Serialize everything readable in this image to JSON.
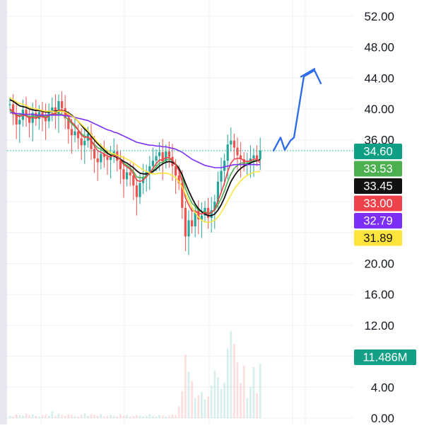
{
  "chart_data": {
    "type": "candlestick",
    "price_axis": {
      "ticks": [
        "52.00",
        "48.00",
        "44.00",
        "40.00",
        "36.00",
        "20.00",
        "16.00",
        "12.00",
        "4.00",
        "0.00"
      ],
      "range": [
        0,
        54
      ],
      "gridlines": true,
      "position": "right"
    },
    "last_price": {
      "value": 34.6,
      "label": "34.60",
      "style": "dotted"
    },
    "badges": [
      {
        "label": "34.60",
        "color": "#0e9f84",
        "text_color": "#ffffff"
      },
      {
        "label": "33.53",
        "color": "#4caf50",
        "text_color": "#ffffff"
      },
      {
        "label": "33.45",
        "color": "#111111",
        "text_color": "#ffffff"
      },
      {
        "label": "33.00",
        "color": "#f0424a",
        "text_color": "#ffffff"
      },
      {
        "label": "32.79",
        "color": "#7b2ff7",
        "text_color": "#ffffff"
      },
      {
        "label": "31.89",
        "color": "#ffe53b",
        "text_color": "#111111"
      }
    ],
    "volume_badge": {
      "label": "11.486M",
      "color": "#14a087"
    },
    "colors": {
      "up": "#26a69a",
      "down": "#ef5350",
      "grid": "#eef0f3",
      "axis_text": "#131722"
    },
    "close_prices": [
      40.6,
      39.3,
      38.0,
      38.6,
      39.9,
      39.1,
      38.2,
      39.5,
      38.7,
      39.6,
      39.0,
      38.4,
      39.8,
      40.2,
      39.3,
      41.0,
      40.1,
      38.8,
      37.4,
      36.6,
      37.1,
      36.2,
      35.3,
      35.9,
      36.8,
      34.8,
      33.6,
      33.1,
      34.2,
      33.8,
      33.4,
      33.9,
      34.5,
      33.3,
      32.2,
      30.9,
      31.8,
      31.4,
      30.1,
      28.6,
      30.4,
      31.2,
      31.9,
      32.6,
      33.3,
      33.9,
      34.4,
      33.2,
      34.5,
      33.8,
      32.6,
      31.4,
      30.4,
      27.2,
      23.5,
      25.6,
      24.8,
      26.9,
      25.7,
      26.2,
      27.2,
      25.9,
      26.9,
      28.0,
      30.6,
      32.0,
      33.3,
      35.4,
      35.9,
      35.0,
      34.0,
      33.5,
      32.8,
      33.0,
      33.6,
      34.0,
      33.5,
      34.6
    ],
    "moving_averages": [
      {
        "label": "33.53",
        "color": "#4caf50",
        "values": [
          39.8,
          39.5,
          39.2,
          39.2,
          39.3,
          39.2,
          39.0,
          39.1,
          39.0,
          39.1,
          39.1,
          39.0,
          39.2,
          39.3,
          39.2,
          39.4,
          39.3,
          39.0,
          38.6,
          38.1,
          37.7,
          37.3,
          36.8,
          36.5,
          36.3,
          35.9,
          35.4,
          35.0,
          34.8,
          34.5,
          34.2,
          34.1,
          34.1,
          33.9,
          33.5,
          33.0,
          32.7,
          32.4,
          31.9,
          31.2,
          31.1,
          31.1,
          31.3,
          31.6,
          32.0,
          32.5,
          33.0,
          33.1,
          33.4,
          33.5,
          33.3,
          32.9,
          32.4,
          31.3,
          29.7,
          28.7,
          27.8,
          27.4,
          26.9,
          26.7,
          26.7,
          26.5,
          26.6,
          26.9,
          27.6,
          28.4,
          29.4,
          30.6,
          31.6,
          32.3,
          32.7,
          33.0,
          33.0,
          33.0,
          33.1,
          33.3,
          33.3,
          33.5
        ]
      },
      {
        "label": "33.45",
        "color": "#111111",
        "values": [
          41.2,
          41.0,
          40.7,
          40.4,
          40.3,
          40.2,
          40.0,
          39.9,
          39.8,
          39.8,
          39.7,
          39.6,
          39.6,
          39.7,
          39.7,
          39.8,
          39.8,
          39.7,
          39.5,
          39.2,
          38.8,
          38.4,
          37.9,
          37.4,
          37.0,
          36.5,
          36.0,
          35.5,
          35.1,
          34.7,
          34.3,
          34.0,
          33.9,
          33.7,
          33.5,
          33.2,
          33.0,
          32.7,
          32.4,
          32.0,
          31.7,
          31.6,
          31.6,
          31.7,
          31.9,
          32.2,
          32.6,
          32.9,
          33.1,
          33.2,
          33.1,
          32.8,
          32.3,
          31.5,
          30.4,
          29.4,
          28.5,
          27.7,
          27.1,
          26.7,
          26.4,
          26.2,
          26.2,
          26.4,
          26.9,
          27.6,
          28.5,
          29.6,
          30.6,
          31.3,
          31.9,
          32.3,
          32.6,
          32.8,
          33.0,
          33.2,
          33.3,
          33.45
        ]
      },
      {
        "label": "33.00",
        "color": "#f0424a",
        "values": [
          40.0,
          39.7,
          39.2,
          39.0,
          39.2,
          39.1,
          38.8,
          38.9,
          38.8,
          39.0,
          39.0,
          38.8,
          39.1,
          39.4,
          39.4,
          39.8,
          39.9,
          39.6,
          39.0,
          38.3,
          37.9,
          37.3,
          36.6,
          36.3,
          36.4,
          35.9,
          35.2,
          34.6,
          34.4,
          34.2,
          33.9,
          33.8,
          34.0,
          33.8,
          33.4,
          32.8,
          32.5,
          32.2,
          31.6,
          30.8,
          30.6,
          30.8,
          31.2,
          31.7,
          32.3,
          32.9,
          33.4,
          33.4,
          33.7,
          33.7,
          33.4,
          32.8,
          32.0,
          30.6,
          28.5,
          27.6,
          26.8,
          26.8,
          26.5,
          26.4,
          26.6,
          26.4,
          26.6,
          27.0,
          28.1,
          29.2,
          30.4,
          31.9,
          33.0,
          33.5,
          33.6,
          33.6,
          33.3,
          33.2,
          33.3,
          33.5,
          33.5,
          33.0
        ]
      },
      {
        "label": "32.79",
        "color": "#7b2ff7",
        "values": [
          39.5,
          39.5,
          39.4,
          39.4,
          39.3,
          39.3,
          39.3,
          39.3,
          39.2,
          39.2,
          39.2,
          39.2,
          39.2,
          39.2,
          39.2,
          39.2,
          39.2,
          39.1,
          39.1,
          39.0,
          38.9,
          38.8,
          38.7,
          38.6,
          38.5,
          38.3,
          38.1,
          37.9,
          37.7,
          37.5,
          37.3,
          37.2,
          37.0,
          36.9,
          36.7,
          36.5,
          36.3,
          36.1,
          35.9,
          35.7,
          35.6,
          35.5,
          35.4,
          35.3,
          35.3,
          35.2,
          35.2,
          35.1,
          35.1,
          35.0,
          34.9,
          34.8,
          34.6,
          34.4,
          34.1,
          33.8,
          33.5,
          33.3,
          33.1,
          32.9,
          32.7,
          32.6,
          32.5,
          32.4,
          32.4,
          32.4,
          32.5,
          32.6,
          32.7,
          32.8,
          32.8,
          32.8,
          32.8,
          32.8,
          32.8,
          32.8,
          32.8,
          32.79
        ]
      },
      {
        "label": "31.89",
        "color": "#ffe53b",
        "values": [
          41.5,
          41.2,
          40.9,
          40.7,
          40.6,
          40.4,
          40.2,
          40.1,
          40.0,
          39.9,
          39.8,
          39.7,
          39.7,
          39.7,
          39.6,
          39.7,
          39.7,
          39.6,
          39.4,
          39.1,
          38.8,
          38.4,
          38.0,
          37.6,
          37.2,
          36.7,
          36.2,
          35.7,
          35.3,
          34.9,
          34.6,
          34.3,
          34.2,
          34.0,
          33.9,
          33.7,
          33.5,
          33.3,
          33.0,
          32.7,
          32.4,
          32.1,
          31.9,
          31.7,
          31.6,
          31.6,
          31.7,
          31.7,
          31.7,
          31.6,
          31.4,
          31.1,
          30.6,
          29.9,
          29.0,
          28.1,
          27.3,
          26.6,
          26.0,
          25.6,
          25.4,
          25.3,
          25.4,
          25.6,
          26.0,
          26.6,
          27.3,
          28.1,
          28.9,
          29.6,
          30.2,
          30.7,
          31.1,
          31.4,
          31.6,
          31.8,
          31.89,
          31.9
        ]
      }
    ],
    "projection": {
      "color": "#2f6ee8",
      "path": [
        34.6,
        36.3,
        34.7,
        35.9,
        36.3,
        44.2,
        45.0,
        43.3
      ]
    },
    "volume": [
      0.3,
      0.2,
      0.5,
      0.4,
      0.3,
      0.6,
      0.4,
      0.5,
      0.3,
      0.2,
      0.4,
      0.5,
      0.3,
      0.9,
      0.3,
      0.6,
      0.4,
      0.3,
      0.5,
      0.4,
      0.3,
      0.2,
      0.4,
      0.6,
      0.3,
      0.5,
      0.4,
      0.3,
      0.5,
      0.2,
      0.3,
      0.4,
      0.3,
      0.2,
      0.5,
      0.3,
      0.4,
      0.2,
      0.3,
      0.4,
      0.3,
      0.2,
      0.3,
      0.5,
      0.3,
      0.2,
      0.4,
      0.3,
      0.2,
      0.3,
      0.5,
      0.4,
      1.5,
      3.5,
      8.2,
      6.0,
      4.8,
      2.6,
      3.0,
      3.4,
      2.4,
      2.8,
      4.2,
      6.2,
      5.3,
      3.8,
      4.6,
      9.0,
      11.3,
      9.6,
      7.2,
      4.5,
      6.8,
      2.6,
      4.0,
      6.6,
      3.2,
      7.0
    ]
  }
}
